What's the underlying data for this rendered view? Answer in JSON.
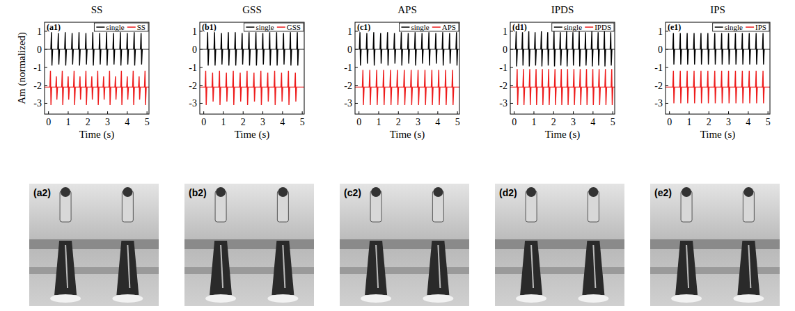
{
  "chart_data": [
    {
      "type": "line",
      "title": "SS",
      "panel_label": "(a1)",
      "photo_label": "(a2)",
      "x_label": "Time (s)",
      "y_label": "Am (normalized)",
      "xlim": [
        -0.2,
        5.1
      ],
      "ylim": [
        -3.6,
        1.5
      ],
      "xticks": [
        0,
        1,
        2,
        3,
        4,
        5
      ],
      "yticks": [
        1,
        0,
        -1,
        -2,
        -3
      ],
      "legend": "top",
      "series": [
        {
          "name": "single",
          "color": "#000000",
          "baseline": 0,
          "x": [
            0.15,
            0.5,
            0.85,
            1.2,
            1.55,
            1.9,
            2.25,
            2.6,
            2.95,
            3.3,
            3.65,
            4.0,
            4.35,
            4.7
          ],
          "values": [
            0.95,
            0.9,
            0.95,
            0.9,
            0.95,
            0.9,
            0.95,
            0.9,
            0.95,
            0.9,
            0.95,
            0.9,
            0.95,
            0.9
          ],
          "troughs": [
            -0.9,
            -0.85,
            -0.9,
            -0.85,
            -0.9,
            -0.85,
            -0.9,
            -0.85,
            -0.9,
            -0.85,
            -0.9,
            -0.85,
            -0.9,
            -0.85
          ]
        },
        {
          "name": "SS",
          "color": "#ee1c1c",
          "baseline": -2.1,
          "x": [
            0.1,
            0.4,
            0.7,
            1.0,
            1.3,
            1.6,
            1.9,
            2.2,
            2.5,
            2.8,
            3.1,
            3.4,
            3.7,
            4.0,
            4.3,
            4.6,
            4.9
          ],
          "values": [
            -1.2,
            -1.5,
            -1.2,
            -1.5,
            -1.2,
            -1.5,
            -1.2,
            -1.5,
            -1.2,
            -1.5,
            -1.2,
            -1.5,
            -1.2,
            -1.5,
            -1.2,
            -1.5,
            -1.2
          ],
          "troughs": [
            -3.1,
            -2.8,
            -3.1,
            -2.8,
            -3.1,
            -2.8,
            -3.1,
            -2.8,
            -3.1,
            -2.8,
            -3.1,
            -2.8,
            -3.1,
            -2.8,
            -3.1,
            -2.8,
            -3.1
          ]
        }
      ]
    },
    {
      "type": "line",
      "title": "GSS",
      "panel_label": "(b1)",
      "photo_label": "(b2)",
      "x_label": "Time (s)",
      "xlim": [
        -0.2,
        5.1
      ],
      "ylim": [
        -3.6,
        1.5
      ],
      "xticks": [
        0,
        1,
        2,
        3,
        4,
        5
      ],
      "yticks": [
        1,
        0,
        -1,
        -2,
        -3
      ],
      "legend": "top",
      "series": [
        {
          "name": "single",
          "color": "#000000",
          "baseline": 0,
          "x": [
            0.2,
            0.55,
            0.9,
            1.25,
            1.6,
            1.95,
            2.3,
            2.65,
            3.0,
            3.35,
            3.7,
            4.05,
            4.4,
            4.75
          ],
          "values": [
            0.95,
            0.95,
            0.9,
            0.95,
            0.95,
            0.9,
            0.95,
            0.95,
            0.9,
            0.95,
            0.95,
            0.9,
            0.95,
            0.95
          ],
          "troughs": [
            -0.9,
            -0.9,
            -0.85,
            -0.9,
            -0.9,
            -0.85,
            -0.9,
            -0.9,
            -0.85,
            -0.9,
            -0.9,
            -0.85,
            -0.9,
            -0.9
          ]
        },
        {
          "name": "GSS",
          "color": "#ee1c1c",
          "baseline": -2.1,
          "x": [
            0.1,
            0.45,
            0.8,
            1.15,
            1.5,
            1.85,
            2.2,
            2.55,
            2.9,
            3.25,
            3.6,
            3.95,
            4.3,
            4.65
          ],
          "values": [
            -1.2,
            -1.3,
            -1.2,
            -1.3,
            -1.2,
            -1.3,
            -1.2,
            -1.3,
            -1.2,
            -1.3,
            -1.2,
            -1.3,
            -1.2,
            -1.3
          ],
          "troughs": [
            -3.1,
            -2.9,
            -3.1,
            -2.9,
            -3.1,
            -2.9,
            -3.1,
            -2.9,
            -3.1,
            -2.9,
            -3.1,
            -2.9,
            -3.1,
            -2.9
          ]
        }
      ]
    },
    {
      "type": "line",
      "title": "APS",
      "panel_label": "(c1)",
      "photo_label": "(c2)",
      "x_label": "Time (s)",
      "xlim": [
        -0.2,
        5.1
      ],
      "ylim": [
        -3.6,
        1.5
      ],
      "xticks": [
        0,
        1,
        2,
        3,
        4,
        5
      ],
      "yticks": [
        1,
        0,
        -1,
        -2,
        -3
      ],
      "legend": "top",
      "series": [
        {
          "name": "single",
          "color": "#000000",
          "baseline": 0,
          "x": [
            0.05,
            0.4,
            0.75,
            1.1,
            1.45,
            1.8,
            2.15,
            2.5,
            2.85,
            3.2,
            3.55,
            3.9,
            4.25,
            4.6,
            4.95
          ],
          "values": [
            0.95,
            0.9,
            0.95,
            0.9,
            0.95,
            0.9,
            0.95,
            0.9,
            0.95,
            0.9,
            0.95,
            0.9,
            0.95,
            0.9,
            0.95
          ],
          "troughs": [
            -0.9,
            -0.8,
            -0.9,
            -0.8,
            -0.9,
            -0.8,
            -0.9,
            -0.8,
            -0.9,
            -0.8,
            -0.9,
            -0.8,
            -0.9,
            -0.8,
            -0.9
          ]
        },
        {
          "name": "APS",
          "color": "#ee1c1c",
          "baseline": -2.1,
          "x": [
            0.2,
            0.55,
            0.9,
            1.25,
            1.6,
            1.95,
            2.3,
            2.65,
            3.0,
            3.35,
            3.7,
            4.05,
            4.4,
            4.75
          ],
          "values": [
            -1.15,
            -1.15,
            -1.15,
            -1.15,
            -1.15,
            -1.15,
            -1.15,
            -1.15,
            -1.15,
            -1.15,
            -1.15,
            -1.15,
            -1.15,
            -1.15
          ],
          "troughs": [
            -3.1,
            -3.1,
            -3.1,
            -3.1,
            -3.1,
            -3.1,
            -3.1,
            -3.1,
            -3.1,
            -3.1,
            -3.1,
            -3.1,
            -3.1,
            -3.1
          ]
        }
      ]
    },
    {
      "type": "line",
      "title": "IPDS",
      "panel_label": "(d1)",
      "photo_label": "(d2)",
      "x_label": "Time (s)",
      "xlim": [
        -0.2,
        5.1
      ],
      "ylim": [
        -3.6,
        1.5
      ],
      "xticks": [
        0,
        1,
        2,
        3,
        4,
        5
      ],
      "yticks": [
        1,
        0,
        -1,
        -2,
        -3
      ],
      "legend": "top",
      "series": [
        {
          "name": "single",
          "color": "#000000",
          "baseline": 0,
          "x": [
            0.1,
            0.42,
            0.74,
            1.06,
            1.38,
            1.7,
            2.02,
            2.34,
            2.66,
            2.98,
            3.3,
            3.62,
            3.94,
            4.26,
            4.58,
            4.9
          ],
          "values": [
            1.0,
            0.95,
            1.0,
            0.95,
            1.0,
            0.95,
            1.0,
            0.95,
            1.0,
            0.95,
            1.0,
            0.95,
            1.0,
            0.95,
            1.0,
            0.95
          ],
          "troughs": [
            -0.95,
            -0.9,
            -0.95,
            -0.9,
            -0.95,
            -0.9,
            -0.95,
            -0.9,
            -0.95,
            -0.9,
            -0.95,
            -0.9,
            -0.95,
            -0.9,
            -0.95,
            -0.9
          ]
        },
        {
          "name": "IPDS",
          "color": "#ee1c1c",
          "baseline": -2.1,
          "x": [
            0.15,
            0.47,
            0.79,
            1.11,
            1.43,
            1.75,
            2.07,
            2.39,
            2.71,
            3.03,
            3.35,
            3.67,
            3.99,
            4.31,
            4.63,
            4.95
          ],
          "values": [
            -1.1,
            -1.1,
            -1.1,
            -1.1,
            -1.1,
            -1.1,
            -1.1,
            -1.1,
            -1.1,
            -1.1,
            -1.1,
            -1.1,
            -1.1,
            -1.1,
            -1.1,
            -1.1
          ],
          "troughs": [
            -3.1,
            -3.1,
            -3.1,
            -3.1,
            -3.1,
            -3.1,
            -3.1,
            -3.1,
            -3.1,
            -3.1,
            -3.1,
            -3.1,
            -3.1,
            -3.1,
            -3.1,
            -3.1
          ]
        }
      ]
    },
    {
      "type": "line",
      "title": "IPS",
      "panel_label": "(e1)",
      "photo_label": "(e2)",
      "x_label": "Time (s)",
      "xlim": [
        -0.2,
        5.1
      ],
      "ylim": [
        -3.6,
        1.5
      ],
      "xticks": [
        0,
        1,
        2,
        3,
        4,
        5
      ],
      "yticks": [
        1,
        0,
        -1,
        -2,
        -3
      ],
      "legend": "top",
      "series": [
        {
          "name": "single",
          "color": "#000000",
          "baseline": 0,
          "x": [
            0.2,
            0.55,
            0.9,
            1.25,
            1.6,
            1.95,
            2.3,
            2.65,
            3.0,
            3.35,
            3.7,
            4.05,
            4.4,
            4.75
          ],
          "values": [
            0.9,
            0.9,
            0.9,
            0.9,
            0.9,
            0.9,
            0.9,
            0.9,
            0.9,
            0.9,
            0.9,
            0.9,
            0.9,
            0.9
          ],
          "troughs": [
            -0.85,
            -0.85,
            -0.85,
            -0.85,
            -0.85,
            -0.85,
            -0.85,
            -0.85,
            -0.85,
            -0.85,
            -0.85,
            -0.85,
            -0.85,
            -0.85
          ]
        },
        {
          "name": "IPS",
          "color": "#ee1c1c",
          "baseline": -2.1,
          "x": [
            0.2,
            0.55,
            0.9,
            1.25,
            1.6,
            1.95,
            2.3,
            2.65,
            3.0,
            3.35,
            3.7,
            4.05,
            4.4,
            4.75
          ],
          "values": [
            -1.2,
            -1.2,
            -1.2,
            -1.2,
            -1.2,
            -1.2,
            -1.2,
            -1.2,
            -1.2,
            -1.2,
            -1.2,
            -1.2,
            -1.2,
            -1.2
          ],
          "troughs": [
            -3.0,
            -3.0,
            -3.0,
            -3.0,
            -3.0,
            -3.0,
            -3.0,
            -3.0,
            -3.0,
            -3.0,
            -3.0,
            -3.0,
            -3.0,
            -3.0
          ]
        }
      ]
    }
  ]
}
